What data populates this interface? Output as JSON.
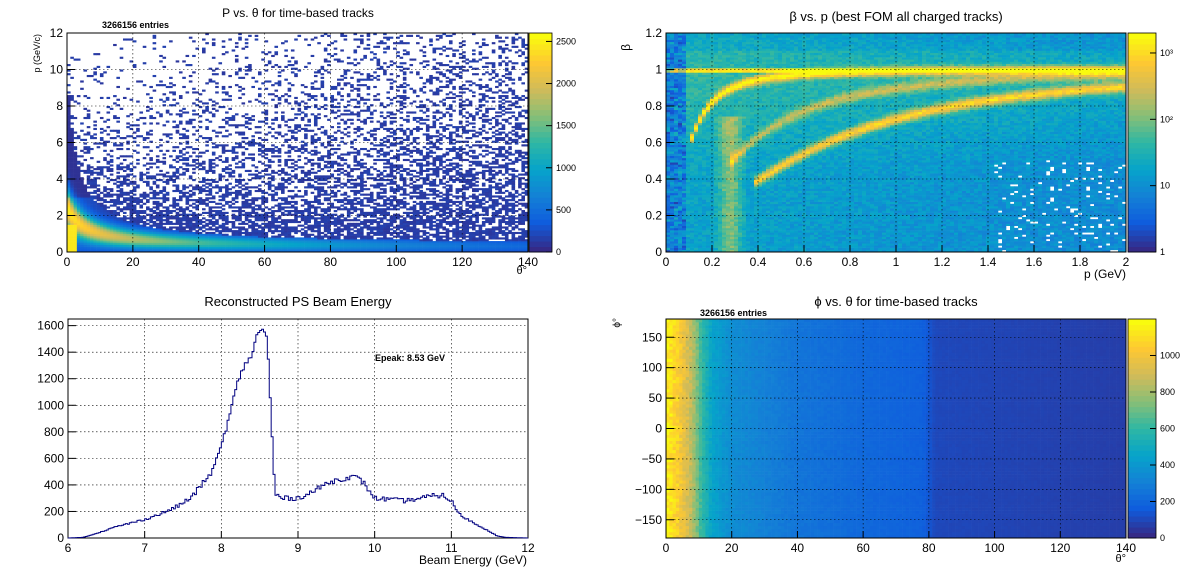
{
  "colors": {
    "palette": [
      "#352a87",
      "#0f5cdd",
      "#1481d6",
      "#06a4ca",
      "#2eb7a4",
      "#87bf77",
      "#d1bb59",
      "#fec832",
      "#f9fb0e"
    ],
    "line": "#000080",
    "grid": "#000000"
  },
  "panels": [
    {
      "id": "p-vs-theta",
      "title": "P vs. θ for time-based tracks",
      "stats": "3266156 entries",
      "xlabel": "θ°",
      "ylabel": "p (GeV/c)",
      "xticks": [
        "0",
        "20",
        "40",
        "60",
        "80",
        "100",
        "120",
        "140"
      ],
      "yticks": [
        "0",
        "2",
        "4",
        "6",
        "8",
        "10",
        "12"
      ],
      "zticks": [
        "0",
        "500",
        "1000",
        "1500",
        "2000",
        "2500"
      ]
    },
    {
      "id": "beta-vs-p",
      "title": "β vs. p (best FOM all charged tracks)",
      "xlabel": "p (GeV)",
      "ylabel": "β",
      "xticks": [
        "0",
        "0.2",
        "0.4",
        "0.6",
        "0.8",
        "1",
        "1.2",
        "1.4",
        "1.6",
        "1.8",
        "2"
      ],
      "yticks": [
        "0",
        "0.2",
        "0.4",
        "0.6",
        "0.8",
        "1",
        "1.2"
      ],
      "zticks": [
        "1",
        "10",
        "10²",
        "10³"
      ]
    },
    {
      "id": "ps-beam-energy",
      "title": "Reconstructed PS Beam Energy",
      "annotation": "Epeak: 8.53 GeV",
      "xlabel": "Beam Energy (GeV)",
      "ylabel": "",
      "xticks": [
        "6",
        "7",
        "8",
        "9",
        "10",
        "11",
        "12"
      ],
      "yticks": [
        "0",
        "200",
        "400",
        "600",
        "800",
        "1000",
        "1200",
        "1400",
        "1600"
      ]
    },
    {
      "id": "phi-vs-theta",
      "title": "ϕ vs. θ for time-based tracks",
      "stats": "3266156 entries",
      "xlabel": "θ°",
      "ylabel": "ϕ°",
      "xticks": [
        "0",
        "20",
        "40",
        "60",
        "80",
        "100",
        "120",
        "140"
      ],
      "yticks": [
        "−150",
        "−100",
        "−50",
        "0",
        "50",
        "100",
        "150"
      ],
      "zticks": [
        "0",
        "200",
        "400",
        "600",
        "800",
        "1000"
      ]
    }
  ],
  "chart_data": [
    {
      "type": "heatmap",
      "title": "P vs. θ for time-based tracks",
      "xlabel": "θ°",
      "ylabel": "p (GeV/c)",
      "xlim": [
        0,
        140
      ],
      "ylim": [
        0,
        12
      ],
      "zlim": [
        0,
        2600
      ],
      "entries": 3266156,
      "description_bands": [
        {
          "theta": 2,
          "p_max": 7.5
        },
        {
          "theta": 5,
          "p_max": 4.5
        },
        {
          "theta": 10,
          "p_max": 2.5
        },
        {
          "theta": 20,
          "p_max": 1.6
        },
        {
          "theta": 40,
          "p_max": 1.1
        },
        {
          "theta": 60,
          "p_max": 1.0
        },
        {
          "theta": 80,
          "p_max": 0.8
        },
        {
          "theta": 120,
          "p_max": 0.6
        }
      ],
      "grid": true,
      "log_z": false
    },
    {
      "type": "heatmap",
      "title": "β vs. p (best FOM all charged tracks)",
      "xlabel": "p (GeV)",
      "ylabel": "β",
      "xlim": [
        0,
        2
      ],
      "ylim": [
        0,
        1.2
      ],
      "zlim": [
        1,
        2000
      ],
      "log_z": true,
      "bands": [
        {
          "name": "",
          "mass": 0.1396
        },
        {
          "name": "",
          "mass": 0.4937
        },
        {
          "name": "",
          "mass": 0.9383
        }
      ],
      "grid": true
    },
    {
      "type": "line",
      "title": "Reconstructed PS Beam Energy",
      "xlabel": "Beam Energy (GeV)",
      "ylabel": "",
      "xlim": [
        6,
        12
      ],
      "ylim": [
        0,
        1650
      ],
      "grid": true,
      "x": [
        6.0,
        6.2,
        6.4,
        6.6,
        6.8,
        7.0,
        7.2,
        7.4,
        7.6,
        7.8,
        7.9,
        8.0,
        8.1,
        8.2,
        8.3,
        8.4,
        8.45,
        8.5,
        8.53,
        8.6,
        8.65,
        8.7,
        8.8,
        9.0,
        9.2,
        9.4,
        9.6,
        9.75,
        9.85,
        10.0,
        10.2,
        10.4,
        10.6,
        10.8,
        10.9,
        11.0,
        11.1,
        11.3,
        11.5,
        11.6,
        11.7,
        12.0
      ],
      "y": [
        0,
        5,
        40,
        80,
        110,
        140,
        180,
        230,
        300,
        440,
        520,
        700,
        900,
        1150,
        1300,
        1380,
        1500,
        1570,
        1580,
        1500,
        900,
        330,
        300,
        300,
        350,
        420,
        450,
        460,
        420,
        300,
        290,
        280,
        300,
        320,
        320,
        280,
        180,
        110,
        50,
        15,
        5,
        0
      ]
    },
    {
      "type": "heatmap",
      "title": "ϕ vs. θ for time-based tracks",
      "xlabel": "θ°",
      "ylabel": "ϕ°",
      "xlim": [
        0,
        140
      ],
      "ylim": [
        -180,
        180
      ],
      "zlim": [
        0,
        1200
      ],
      "entries": 3266156,
      "theta_profile": [
        {
          "theta": 1,
          "z": 1150
        },
        {
          "theta": 4,
          "z": 1050
        },
        {
          "theta": 8,
          "z": 850
        },
        {
          "theta": 11,
          "z": 600
        },
        {
          "theta": 14,
          "z": 450
        },
        {
          "theta": 20,
          "z": 350
        },
        {
          "theta": 30,
          "z": 300
        },
        {
          "theta": 40,
          "z": 250
        },
        {
          "theta": 60,
          "z": 200
        },
        {
          "theta": 78,
          "z": 170
        },
        {
          "theta": 82,
          "z": 90
        },
        {
          "theta": 140,
          "z": 60
        }
      ],
      "grid": true,
      "log_z": false
    }
  ]
}
